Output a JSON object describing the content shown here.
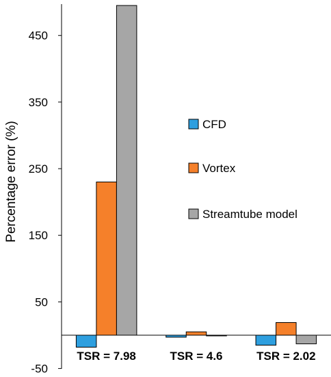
{
  "chart_data": {
    "type": "bar",
    "title": "",
    "xlabel": "",
    "ylabel": "Percentage error (%)",
    "categories": [
      "TSR = 7.98",
      "TSR = 4.6",
      "TSR = 2.02"
    ],
    "series": [
      {
        "name": "CFD",
        "color": "#2E9FDF",
        "values": [
          -18,
          -3,
          -15
        ]
      },
      {
        "name": "Vortex",
        "color": "#F5802A",
        "values": [
          230,
          5,
          19
        ]
      },
      {
        "name": "Streamtube model",
        "color": "#A6A6A6",
        "values": [
          495,
          -1,
          -13
        ]
      }
    ],
    "yticks": [
      -50,
      50,
      150,
      250,
      350,
      450
    ],
    "ylim": [
      -50,
      495
    ],
    "grid": false,
    "legend_position": "right"
  }
}
